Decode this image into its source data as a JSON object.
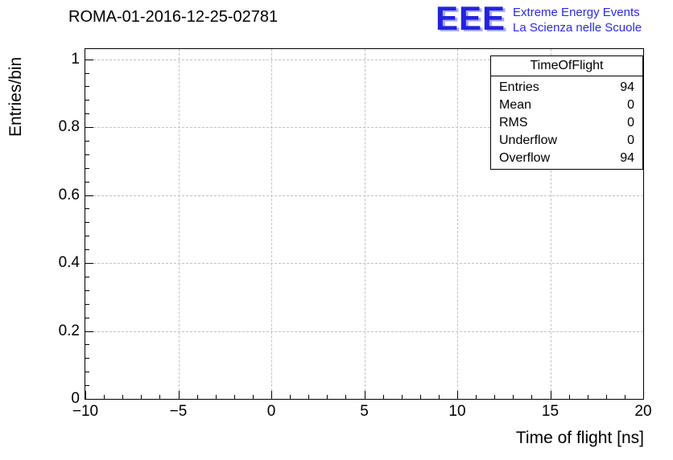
{
  "header": {
    "title": "ROMA-01-2016-12-25-02781",
    "logo": {
      "text": "EEE",
      "line1": "Extreme Energy Events",
      "line2": "La Scienza nelle Scuole",
      "color": "#2323dd"
    }
  },
  "chart_data": {
    "type": "bar",
    "title": "ROMA-01-2016-12-25-02781",
    "xlabel": "Time of flight [ns]",
    "ylabel": "Entries/bin",
    "xlim": [
      -10,
      20
    ],
    "ylim": [
      0,
      1.03
    ],
    "xticks": [
      -10,
      -5,
      0,
      5,
      10,
      15,
      20
    ],
    "xtick_labels": [
      "−10",
      "−5",
      "0",
      "5",
      "10",
      "15",
      "20"
    ],
    "yticks": [
      0,
      0.2,
      0.4,
      0.6,
      0.8,
      1
    ],
    "ytick_labels": [
      "0",
      "0.2",
      "0.4",
      "0.6",
      "0.8",
      "1"
    ],
    "x_minor_step": 1,
    "y_minor_step": 0.04,
    "grid": true,
    "grid_style": "dashed",
    "values": [],
    "series": []
  },
  "stats": {
    "title": "TimeOfFlight",
    "rows": [
      {
        "label": "Entries",
        "value": "94"
      },
      {
        "label": "Mean",
        "value": "0"
      },
      {
        "label": "RMS",
        "value": "0"
      },
      {
        "label": "Underflow",
        "value": "0"
      },
      {
        "label": "Overflow",
        "value": "94"
      }
    ]
  }
}
